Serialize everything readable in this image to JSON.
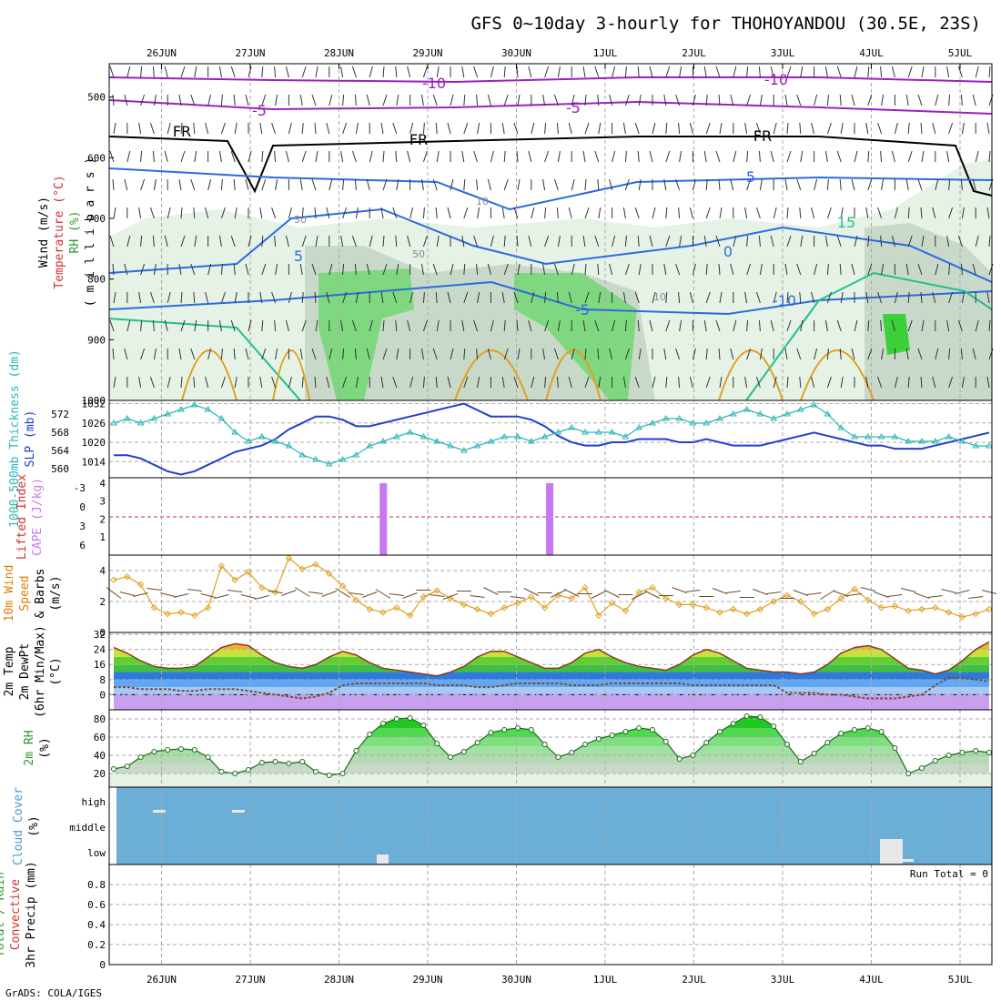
{
  "title": "GFS 0~10day 3-hourly for THOHOYANDOU (30.5E, 23S)",
  "footer": "GrADS: COLA/IGES",
  "run_total": "Run Total = 0",
  "colors": {
    "rh_green": "#3ad13a",
    "temp_orange": "#e07b00",
    "slp_blue": "#1f3fd0",
    "thickness_cyan": "#2bb5b5",
    "cape_purple": "#c878f0",
    "cloud_blue": "#6baed6",
    "contour_blue": "#2b6be0",
    "contour_purple": "#9b20c0",
    "contour_teal": "#22c08a"
  },
  "chart_data": [
    {
      "type": "contour",
      "name": "upper-air",
      "ylabels": [
        {
          "text": "Wind (m/s)",
          "color": "#000000"
        },
        {
          "text": "Temperature (°C)",
          "color": "#d03030"
        },
        {
          "text": "RH (%)",
          "color": "#2a9a2a"
        },
        {
          "text": "( m i l l i b a r s )",
          "color": "#000000"
        }
      ],
      "y_ticks": [
        "500",
        "600",
        "700",
        "800",
        "900",
        "1000"
      ],
      "x_ticks": [
        "26JUN",
        "27JUN",
        "28JUN",
        "29JUN",
        "30JUN",
        "1JUL",
        "2JUL",
        "3JUL",
        "4JUL",
        "5JUL"
      ],
      "ylim": [
        1000,
        445
      ],
      "contour_labels": [
        "-10",
        "-10",
        "-5",
        "-5",
        "FR",
        "FR",
        "FR",
        "5",
        "5",
        "0",
        "-5",
        "-10",
        "10",
        "15",
        "30",
        "50",
        "10"
      ]
    },
    {
      "type": "line",
      "name": "slp-thickness",
      "ylabels": [
        {
          "text": "SLP (mb)",
          "color": "#1f3fd0"
        },
        {
          "text": "1000-500mb Thickness (dm)",
          "color": "#2bb5b5"
        }
      ],
      "y_ticks_left": [
        "560",
        "564",
        "568",
        "572"
      ],
      "y_ticks_right": [
        "1014",
        "1020",
        "1026",
        "1032"
      ],
      "slp_ylim": [
        1009,
        1033
      ],
      "series": [
        {
          "name": "SLP",
          "values": [
            1016,
            1016,
            1015,
            1013,
            1011,
            1010,
            1011,
            1013,
            1015,
            1017,
            1018,
            1019,
            1021,
            1024,
            1026,
            1028,
            1028,
            1027,
            1025,
            1025,
            1026,
            1027,
            1028,
            1029,
            1030,
            1031,
            1032,
            1030,
            1028,
            1028,
            1028,
            1027,
            1025,
            1022,
            1020,
            1019,
            1019,
            1020,
            1020,
            1021,
            1021,
            1021,
            1020,
            1020,
            1021,
            1020,
            1019,
            1019,
            1019,
            1020,
            1021,
            1022,
            1023,
            1022,
            1021,
            1020,
            1019,
            1019,
            1018,
            1018,
            1018,
            1019,
            1020,
            1021,
            1022,
            1023
          ]
        },
        {
          "name": "Thickness",
          "values": [
            570,
            571,
            570,
            571,
            572,
            573,
            574,
            573,
            571,
            568,
            566,
            567,
            566,
            565,
            563,
            562,
            561,
            562,
            563,
            565,
            566,
            567,
            568,
            567,
            566,
            565,
            564,
            565,
            566,
            567,
            567,
            566,
            567,
            568,
            569,
            568,
            568,
            568,
            567,
            569,
            570,
            571,
            571,
            570,
            570,
            571,
            572,
            573,
            572,
            571,
            572,
            573,
            574,
            572,
            569,
            567,
            567,
            567,
            567,
            566,
            566,
            566,
            567,
            566,
            565,
            565
          ]
        }
      ]
    },
    {
      "type": "bar",
      "name": "cape-li",
      "ylabels": [
        {
          "text": "Lifted Index",
          "color": "#d03030"
        },
        {
          "text": "CAPE (J/kg)",
          "color": "#c878f0"
        }
      ],
      "y_ticks_left": [
        "-3",
        "0",
        "3",
        "6"
      ],
      "y_ticks_right": [
        "1",
        "2",
        "3",
        "4"
      ],
      "bars": [
        {
          "x_day": 2.5,
          "value": 4
        },
        {
          "x_day": 4.375,
          "value": 4
        }
      ]
    },
    {
      "type": "line",
      "name": "wind10m",
      "ylabels": [
        {
          "text": "10m Wind",
          "color": "#e07b00"
        },
        {
          "text": "Speed",
          "color": "#e07b00"
        },
        {
          "text": "& Barbs",
          "color": "#000000"
        },
        {
          "text": "(m/s)",
          "color": "#000000"
        }
      ],
      "y_ticks": [
        "0",
        "2",
        "4"
      ],
      "ylim": [
        0,
        5
      ],
      "series": [
        {
          "name": "Speed",
          "values": [
            3.4,
            3.6,
            3.1,
            1.6,
            1.2,
            1.3,
            1.1,
            1.6,
            4.3,
            3.4,
            3.9,
            2.9,
            2.6,
            4.8,
            4.1,
            4.4,
            3.8,
            3.0,
            2.1,
            1.5,
            1.3,
            1.6,
            1.1,
            2.3,
            2.7,
            2.2,
            1.8,
            1.5,
            1.2,
            1.6,
            1.9,
            2.3,
            1.6,
            2.4,
            2.2,
            2.9,
            1.1,
            1.9,
            1.4,
            2.6,
            2.9,
            2.2,
            1.8,
            1.8,
            1.6,
            1.3,
            1.5,
            1.2,
            1.5,
            2.0,
            2.4,
            2.0,
            1.2,
            1.5,
            2.2,
            2.8,
            2.1,
            1.6,
            1.7,
            1.4,
            1.5,
            1.6,
            1.3,
            1.0,
            1.2,
            1.5
          ]
        }
      ]
    },
    {
      "type": "area",
      "name": "temp2m",
      "ylabels": [
        {
          "text": "2m Temp",
          "color": "#000000"
        },
        {
          "text": "2m DewPt",
          "color": "#000000"
        },
        {
          "text": "(6hr Min/Max)",
          "color": "#000000"
        },
        {
          "text": "(°C)",
          "color": "#000000"
        }
      ],
      "y_ticks": [
        "0",
        "8",
        "16",
        "24",
        "32"
      ],
      "ylim": [
        -8,
        33
      ],
      "series": [
        {
          "name": "Temp",
          "values": [
            25,
            22,
            18,
            15,
            14,
            14,
            15,
            20,
            25,
            27,
            26,
            21,
            17,
            15,
            14,
            16,
            20,
            23,
            21,
            17,
            14,
            13,
            12,
            11,
            10,
            12,
            15,
            20,
            23,
            23,
            20,
            17,
            14,
            14,
            17,
            22,
            24,
            20,
            17,
            15,
            14,
            13,
            16,
            21,
            24,
            22,
            18,
            14,
            13,
            12,
            12,
            11,
            12,
            16,
            22,
            25,
            26,
            24,
            19,
            14,
            13,
            11,
            13,
            18,
            24,
            28
          ]
        },
        {
          "name": "DewPt",
          "values": [
            4,
            4,
            3,
            3,
            3,
            2,
            2,
            3,
            3,
            3,
            2,
            1,
            0,
            -1,
            -2,
            -1,
            1,
            5,
            6,
            6,
            6,
            6,
            6,
            6,
            5,
            5,
            5,
            4,
            4,
            5,
            6,
            6,
            6,
            6,
            5,
            5,
            5,
            6,
            6,
            6,
            6,
            6,
            6,
            5,
            5,
            5,
            5,
            5,
            5,
            5,
            1,
            1,
            1,
            0,
            0,
            -1,
            -2,
            -2,
            -2,
            -1,
            0,
            5,
            9,
            9,
            8,
            7
          ]
        }
      ]
    },
    {
      "type": "area",
      "name": "rh2m",
      "ylabels": [
        {
          "text": "2m RH",
          "color": "#2a9a2a"
        },
        {
          "text": "(%)",
          "color": "#000000"
        }
      ],
      "y_ticks": [
        "20",
        "40",
        "60",
        "80"
      ],
      "ylim": [
        5,
        90
      ],
      "series": [
        {
          "name": "RH",
          "values": [
            25,
            28,
            38,
            44,
            46,
            47,
            46,
            38,
            22,
            20,
            24,
            32,
            33,
            31,
            33,
            22,
            18,
            20,
            45,
            63,
            75,
            80,
            81,
            73,
            53,
            38,
            44,
            54,
            65,
            68,
            70,
            68,
            52,
            38,
            43,
            52,
            58,
            62,
            66,
            70,
            68,
            55,
            36,
            40,
            54,
            66,
            75,
            83,
            82,
            72,
            52,
            33,
            42,
            54,
            64,
            68,
            70,
            66,
            48,
            20,
            26,
            34,
            40,
            43,
            45,
            43
          ]
        }
      ]
    },
    {
      "type": "bar",
      "name": "cloud-cover",
      "ylabels": [
        {
          "text": "Cloud Cover",
          "color": "#4a9ad0"
        },
        {
          "text": "(%)",
          "color": "#000000"
        }
      ],
      "levels": [
        "high",
        "middle",
        "low"
      ]
    },
    {
      "type": "bar",
      "name": "precip",
      "ylabels": [
        {
          "text": "Total / Rain",
          "color": "#2a9a2a"
        },
        {
          "text": "Convective",
          "color": "#d03030"
        },
        {
          "text": "3hr Precip (mm)",
          "color": "#000000"
        }
      ],
      "y_ticks": [
        "0",
        "0.2",
        "0.4",
        "0.6",
        "0.8"
      ],
      "ylim": [
        0,
        1
      ]
    }
  ]
}
